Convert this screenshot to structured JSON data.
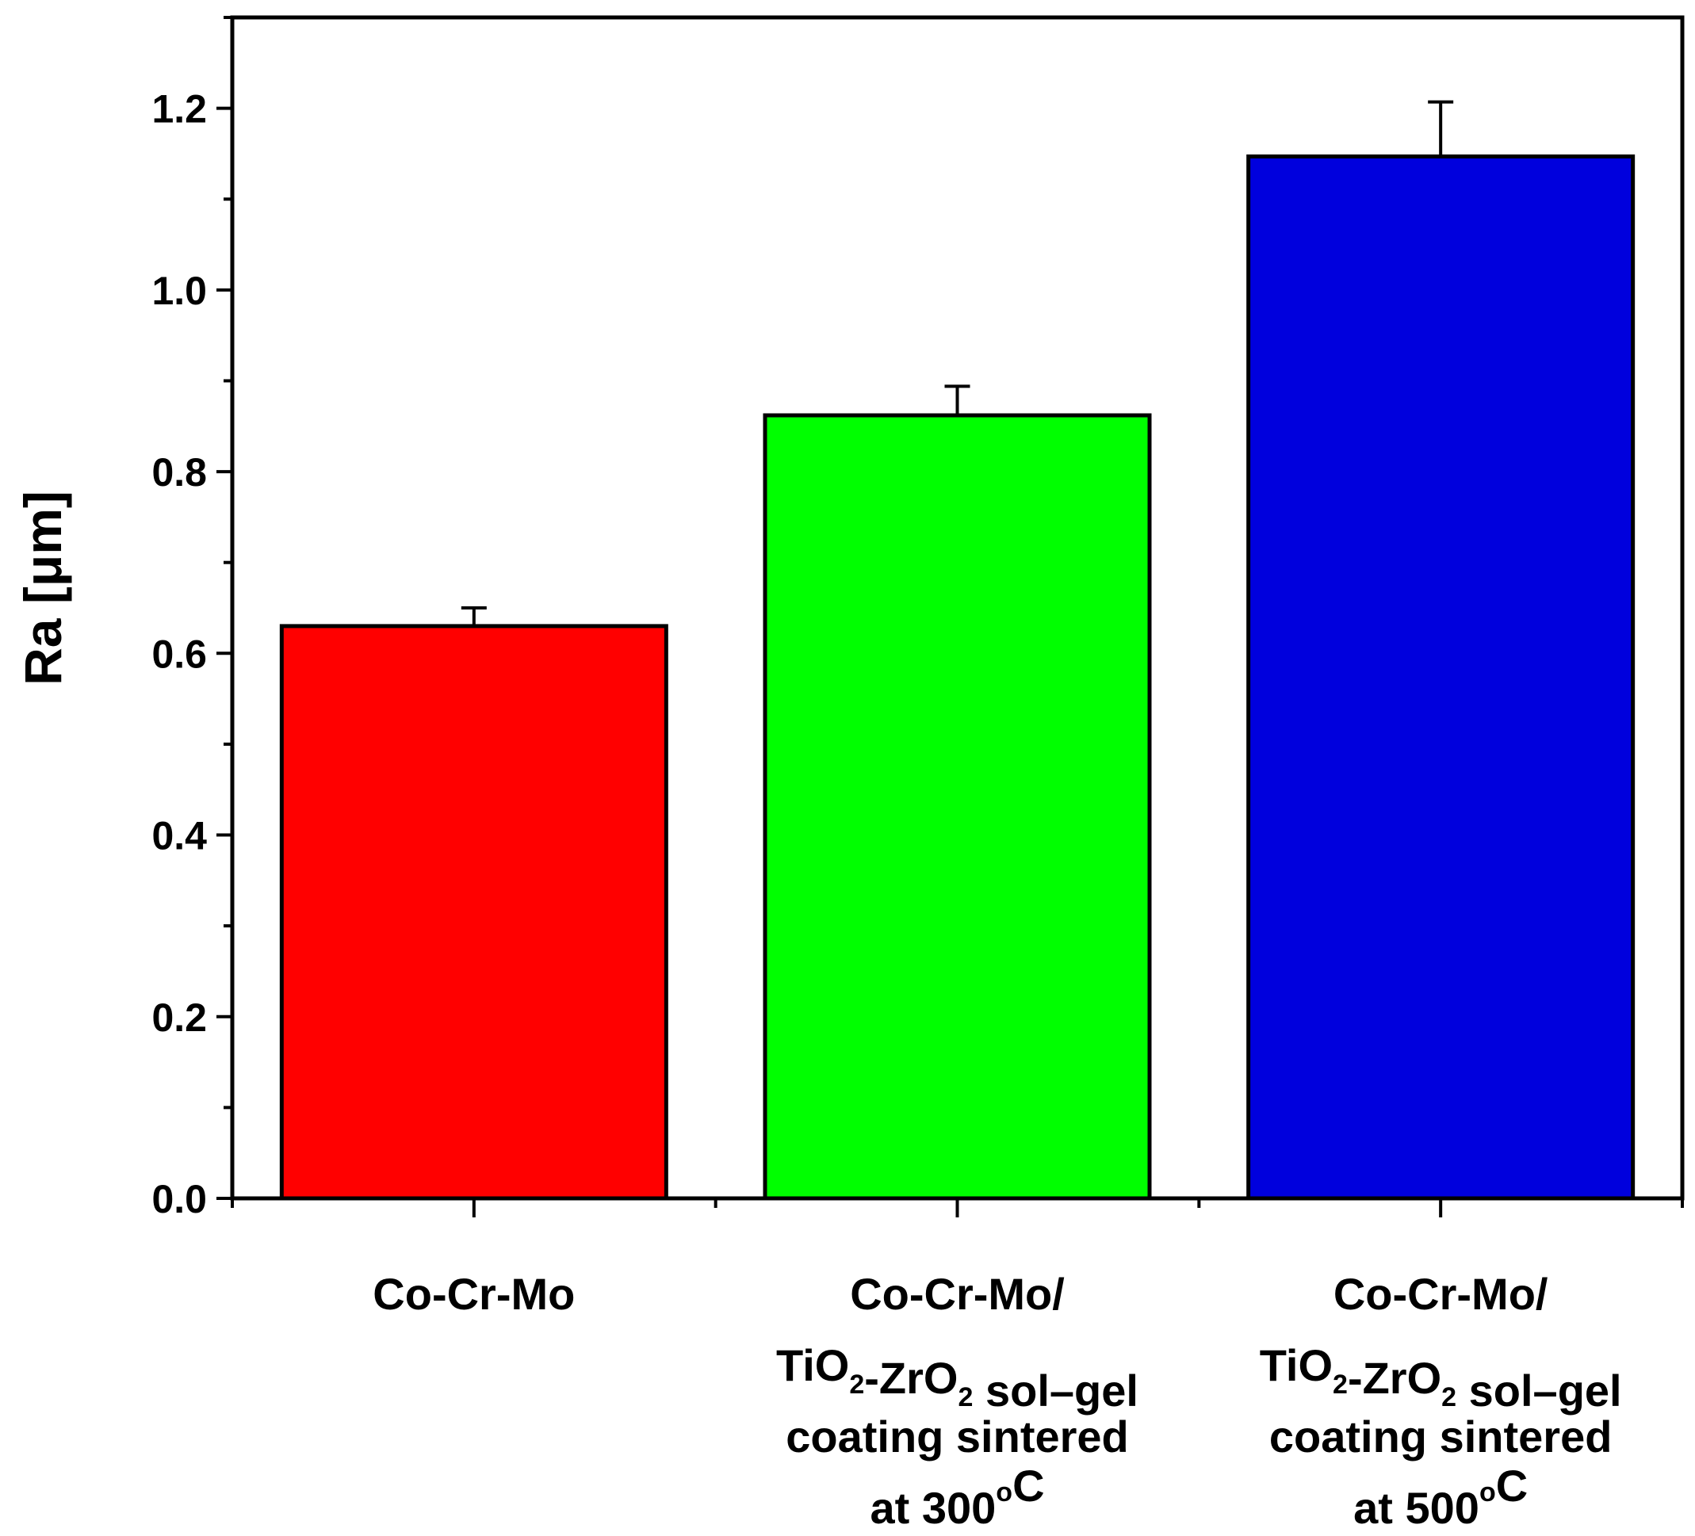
{
  "chart_data": {
    "type": "bar",
    "title": "",
    "xlabel": "",
    "ylabel": "Ra [μm]",
    "ylim": [
      0,
      1.3
    ],
    "yticks": [
      "0.0",
      "0.2",
      "0.4",
      "0.6",
      "0.8",
      "1.0",
      "1.2"
    ],
    "ytick_values": [
      0.0,
      0.2,
      0.4,
      0.6,
      0.8,
      1.0,
      1.2
    ],
    "categories": [
      {
        "label": "Co-Cr-Mo",
        "lines": [
          [
            {
              "t": "Co-Cr-Mo"
            }
          ]
        ]
      },
      {
        "label": "Co-Cr-Mo/ TiO2-ZrO2 sol–gel coating sintered at 300°C",
        "lines": [
          [
            {
              "t": "Co-Cr-Mo/"
            }
          ],
          [
            {
              "t": "TiO"
            },
            {
              "t": "2",
              "s": "sub"
            },
            {
              "t": "-ZrO"
            },
            {
              "t": "2",
              "s": "sub"
            },
            {
              "t": " sol–gel"
            }
          ],
          [
            {
              "t": "coating sintered"
            }
          ],
          [
            {
              "t": "at 300"
            },
            {
              "t": "o",
              "s": "sup"
            },
            {
              "t": "C"
            }
          ]
        ]
      },
      {
        "label": "Co-Cr-Mo/ TiO2-ZrO2 sol–gel coating sintered at 500°C",
        "lines": [
          [
            {
              "t": "Co-Cr-Mo/"
            }
          ],
          [
            {
              "t": "TiO"
            },
            {
              "t": "2",
              "s": "sub"
            },
            {
              "t": "-ZrO"
            },
            {
              "t": "2",
              "s": "sub"
            },
            {
              "t": " sol–gel"
            }
          ],
          [
            {
              "t": "coating sintered"
            }
          ],
          [
            {
              "t": "at 500"
            },
            {
              "t": "o",
              "s": "sup"
            },
            {
              "t": "C"
            }
          ]
        ]
      }
    ],
    "values": [
      0.63,
      0.862,
      1.147
    ],
    "errors": [
      0.02,
      0.032,
      0.06
    ],
    "colors": [
      "#ff0000",
      "#00ff00",
      "#0000dd"
    ]
  }
}
